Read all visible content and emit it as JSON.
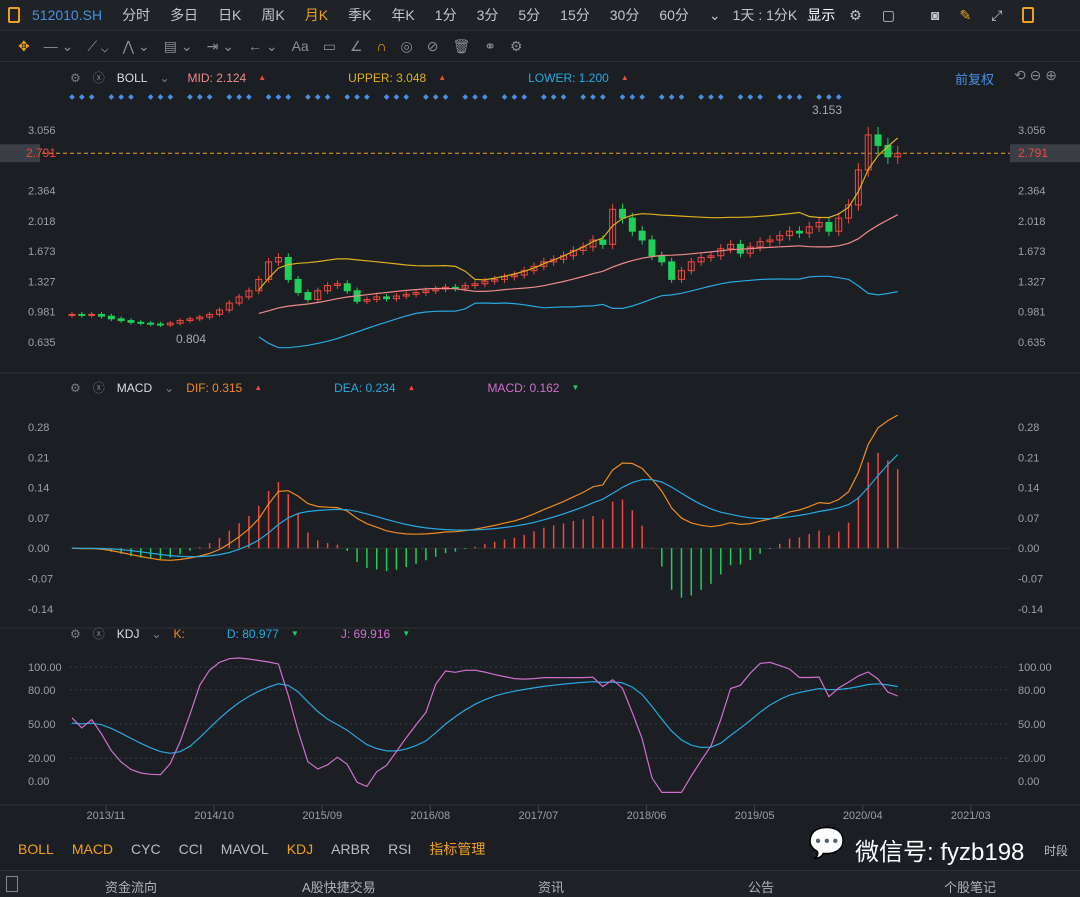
{
  "toolbar": {
    "symbol": "512010.SH",
    "periods": [
      "分时",
      "多日",
      "日K",
      "周K",
      "月K",
      "季K",
      "年K",
      "1分",
      "3分",
      "5分",
      "15分",
      "30分",
      "60分"
    ],
    "active_period": "月K",
    "range": "1天 : 1分K",
    "display": "显示"
  },
  "drawing_tools": [
    "move-icon",
    "line-icon",
    "channel-icon",
    "wave-icon",
    "fib-icon",
    "range-icon",
    "arrow-icon",
    "text-icon",
    "comment-icon",
    "angle-icon",
    "magnet-icon",
    "eye-icon",
    "hide-icon",
    "trash-icon",
    "link-icon",
    "settings-icon"
  ],
  "drawing_text_label": "Aa",
  "boll": {
    "name": "BOLL",
    "mid": "MID: 2.124",
    "upper": "UPPER: 3.048",
    "lower": "LOWER: 1.200",
    "adjust": "前复权",
    "current_price": "2.791",
    "high_label": "3.153",
    "low_label": "0.804"
  },
  "macd": {
    "name": "MACD",
    "dif": "DIF: 0.315",
    "dea": "DEA: 0.234",
    "macd": "MACD: 0.162"
  },
  "kdj": {
    "name": "KDJ",
    "k": "K:",
    "d": "D: 80.977",
    "j": "J: 69.916"
  },
  "indicators": [
    "BOLL",
    "MACD",
    "CYC",
    "CCI",
    "MAVOL",
    "KDJ",
    "ARBR",
    "RSI"
  ],
  "indicator_manage": "指标管理",
  "watermark": "微信号: fyzb198",
  "time_segment": "时段",
  "bottom_tabs": [
    "资金流向",
    "A股快捷交易",
    "资讯",
    "公告",
    "个股笔记"
  ],
  "colors": {
    "up": "#f0483e",
    "down": "#1fcf5a",
    "mid": "#f08a8a",
    "upper": "#e0b020",
    "lower": "#29a8e0",
    "dif": "#f08a20",
    "dea": "#29a8e0",
    "macd": "#d070d0",
    "accent": "#f0a020",
    "link": "#4a90e2"
  },
  "chart_data": [
    {
      "type": "candlestick",
      "title": "BOLL",
      "start": "2013/08",
      "interval": "month",
      "x_ticks": [
        "2013/11",
        "2014/10",
        "2015/09",
        "2016/08",
        "2017/07",
        "2018/06",
        "2019/05",
        "2020/04",
        "2021/03"
      ],
      "y_ticks": [
        3.056,
        2.791,
        2.364,
        2.018,
        1.673,
        1.327,
        0.981,
        0.635
      ],
      "ylim": [
        0.55,
        3.3
      ],
      "close": [
        0.95,
        0.94,
        0.95,
        0.93,
        0.9,
        0.88,
        0.86,
        0.85,
        0.84,
        0.83,
        0.85,
        0.88,
        0.9,
        0.92,
        0.95,
        1.0,
        1.08,
        1.15,
        1.22,
        1.35,
        1.55,
        1.6,
        1.35,
        1.2,
        1.12,
        1.22,
        1.28,
        1.3,
        1.22,
        1.1,
        1.12,
        1.15,
        1.13,
        1.16,
        1.18,
        1.2,
        1.22,
        1.24,
        1.26,
        1.25,
        1.28,
        1.3,
        1.33,
        1.35,
        1.38,
        1.4,
        1.45,
        1.5,
        1.55,
        1.58,
        1.62,
        1.68,
        1.72,
        1.8,
        1.75,
        2.15,
        2.05,
        1.9,
        1.8,
        1.62,
        1.55,
        1.35,
        1.45,
        1.55,
        1.6,
        1.62,
        1.7,
        1.75,
        1.65,
        1.72,
        1.78,
        1.8,
        1.85,
        1.9,
        1.88,
        1.95,
        2.0,
        1.9,
        2.05,
        2.2,
        2.6,
        3.0,
        2.88,
        2.75,
        2.79
      ]
    },
    {
      "type": "line",
      "title": "MACD",
      "y_ticks": [
        0.28,
        0.21,
        0.14,
        0.07,
        0.0,
        -0.07,
        -0.14
      ],
      "ylim": [
        -0.16,
        0.32
      ]
    },
    {
      "type": "line",
      "title": "KDJ",
      "y_ticks": [
        100,
        80,
        50,
        20,
        0
      ],
      "ylim": [
        -10,
        110
      ]
    }
  ]
}
